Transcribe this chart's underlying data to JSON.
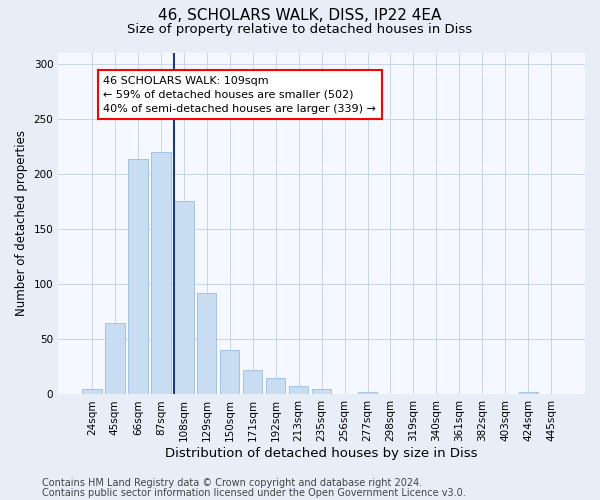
{
  "title1": "46, SCHOLARS WALK, DISS, IP22 4EA",
  "title2": "Size of property relative to detached houses in Diss",
  "xlabel": "Distribution of detached houses by size in Diss",
  "ylabel": "Number of detached properties",
  "categories": [
    "24sqm",
    "45sqm",
    "66sqm",
    "87sqm",
    "108sqm",
    "129sqm",
    "150sqm",
    "171sqm",
    "192sqm",
    "213sqm",
    "235sqm",
    "256sqm",
    "277sqm",
    "298sqm",
    "319sqm",
    "340sqm",
    "361sqm",
    "382sqm",
    "403sqm",
    "424sqm",
    "445sqm"
  ],
  "values": [
    5,
    65,
    213,
    220,
    175,
    92,
    40,
    22,
    15,
    8,
    5,
    0,
    2,
    0,
    0,
    0,
    0,
    0,
    0,
    2,
    0
  ],
  "bar_color": "#c9ddf2",
  "bar_edgecolor": "#9bbce0",
  "highlight_line_index": 4,
  "annotation_line1": "46 SCHOLARS WALK: 109sqm",
  "annotation_line2": "← 59% of detached houses are smaller (502)",
  "annotation_line3": "40% of semi-detached houses are larger (339) →",
  "annotation_box_color": "white",
  "annotation_box_edgecolor": "red",
  "footnote1": "Contains HM Land Registry data © Crown copyright and database right 2024.",
  "footnote2": "Contains public sector information licensed under the Open Government Licence v3.0.",
  "ylim": [
    0,
    310
  ],
  "yticks": [
    0,
    50,
    100,
    150,
    200,
    250,
    300
  ],
  "bg_color": "#e8eef8",
  "plot_bg_color": "#f5f8ff",
  "grid_color": "#c8d4e8",
  "title1_fontsize": 11,
  "title2_fontsize": 9.5,
  "xlabel_fontsize": 9.5,
  "ylabel_fontsize": 8.5,
  "tick_fontsize": 7.5,
  "footnote_fontsize": 7,
  "highlight_line_color": "#1a3a7a"
}
